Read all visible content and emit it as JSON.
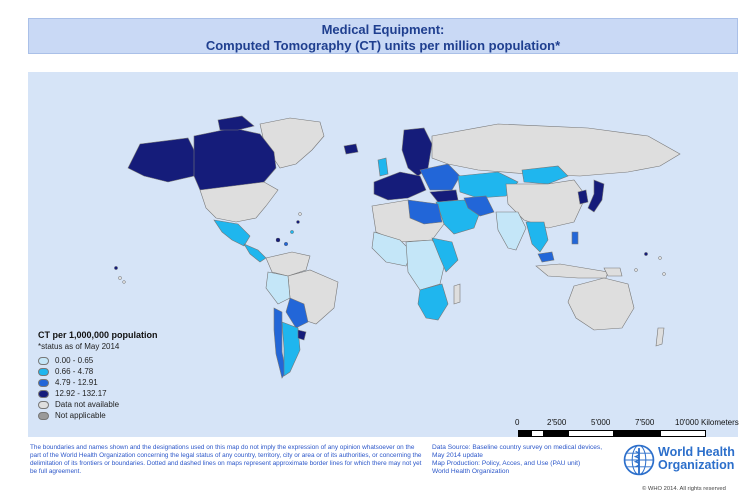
{
  "title": {
    "line1": "Medical Equipment:",
    "line2": "Computed Tomography (CT) units per million population*"
  },
  "legend": {
    "title": "CT per 1,000,000 population",
    "note": "*status as of May 2014",
    "items": [
      {
        "label": "0.00 - 0.65",
        "color": "#c4e6f8"
      },
      {
        "label": "0.66 - 4.78",
        "color": "#1fb6ee"
      },
      {
        "label": "4.79 - 12.91",
        "color": "#2266d8"
      },
      {
        "label": "12.92 - 132.17",
        "color": "#151c7a"
      },
      {
        "label": "Data not available",
        "color": "#dedede"
      },
      {
        "label": "Not applicable",
        "color": "#9a9a9a"
      }
    ]
  },
  "scale": {
    "labels": [
      "0",
      "2'500",
      "5'000",
      "7'500",
      "10'000 Kilometers"
    ]
  },
  "disclaimer": "The boundaries and names shown and the designations used on this map do not imply the expression of any opinion whatsoever on the part of the World Health Organization concerning the legal status of any country, territory, city or area or of its authorities, or concerning the delimitation of its frontiers or boundaries. Dotted and dashed lines on maps represent approximate border lines for which there may not yet be full agreement.",
  "source": {
    "line1": "Data Source: Baseline country survey on medical devices,",
    "line2": "May 2014 update",
    "line3": "Map Production: Policy, Acces, and Use  (PAU unit)",
    "line4": "World Health Organization"
  },
  "organization": {
    "line1": "World Health",
    "line2": "Organization"
  },
  "copyright": "© WHO 2014. All rights reserved"
}
